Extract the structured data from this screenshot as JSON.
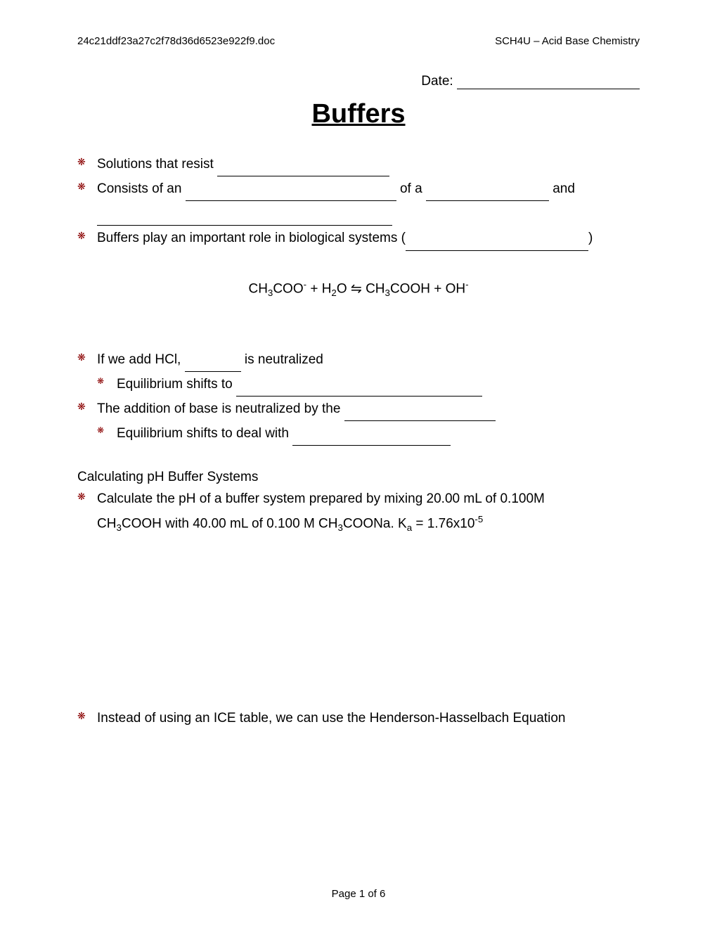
{
  "header": {
    "filename": "24c21ddf23a27c2f78d36d6523e922f9.doc",
    "course": "SCH4U – Acid Base Chemistry"
  },
  "date_label": "Date: ",
  "title": "Buffers",
  "bullets": {
    "b1_prefix": "Solutions that resist ",
    "b2_prefix": "Consists of an ",
    "b2_mid": " of a ",
    "b2_suffix": " and",
    "b3_prefix": "Buffers play an important role in biological systems (",
    "b3_suffix": ")"
  },
  "equation": {
    "text_before": "CH",
    "sub1": "3",
    "text2": "COO",
    "sup1": "-",
    "text3": " + H",
    "sub2": "2",
    "text4": "O ⇋ CH",
    "sub3": "3",
    "text5": "COOH + OH",
    "sup2": "-"
  },
  "bullets2": {
    "b4_prefix": "If we add HCl, ",
    "b4_suffix": " is neutralized",
    "b4a_prefix": "Equilibrium shifts to ",
    "b5_prefix": "The addition of base is neutralized by the ",
    "b5a_prefix": "Equilibrium shifts to deal with "
  },
  "section_heading": "Calculating pH Buffer Systems",
  "problem": {
    "line1_a": "Calculate the pH of a buffer system prepared by mixing 20.00 mL of 0.100M",
    "line2_a": "CH",
    "line2_sub1": "3",
    "line2_b": "COOH with 40.00 mL of 0.100 M CH",
    "line2_sub2": "3",
    "line2_c": "COONa.     K",
    "line2_sub3": "a",
    "line2_d": " = 1.76x10",
    "line2_sup": "-5"
  },
  "last_bullet": "Instead of using an ICE table, we can use the Henderson-Hasselbach Equation",
  "footer": "Page 1 of 6",
  "blank_widths": {
    "b1": 245,
    "b2a": 300,
    "b2b": 175,
    "b2_cont": 420,
    "b3": 260,
    "b4": 80,
    "b4a": 350,
    "b5": 215,
    "b5a": 225
  }
}
